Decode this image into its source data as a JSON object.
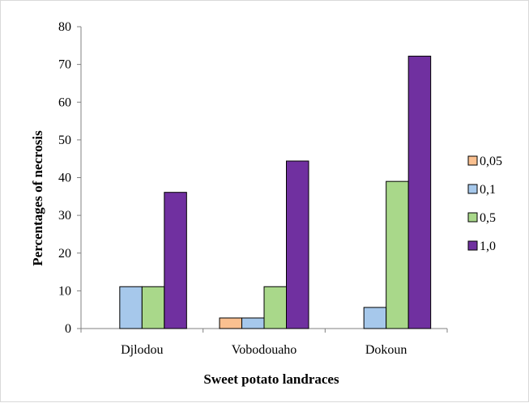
{
  "chart_data": {
    "type": "bar",
    "title": "",
    "xlabel": "Sweet potato landraces",
    "ylabel": "Percentages of necrosis",
    "categories": [
      "Djlodou",
      "Vobodouaho",
      "Dokoun"
    ],
    "ylim": [
      0,
      80
    ],
    "yticks": [
      "0",
      "10",
      "20",
      "30",
      "40",
      "50",
      "60",
      "70",
      "80"
    ],
    "grid": false,
    "legend_position": "right",
    "series": [
      {
        "name": "0,05",
        "color": "#f79646",
        "fill": "#fac090",
        "values": [
          0,
          2.8,
          0
        ]
      },
      {
        "name": "0,1",
        "color": "#4f81bd",
        "fill": "#a6c8eb",
        "values": [
          11.1,
          2.8,
          5.6
        ]
      },
      {
        "name": "0,5",
        "color": "#9bbb59",
        "fill": "#a9d88a",
        "values": [
          11.1,
          11.1,
          39.0
        ]
      },
      {
        "name": "1,0",
        "color": "#5f2d91",
        "fill": "#7030a0",
        "values": [
          36.1,
          44.4,
          72.2
        ]
      }
    ]
  }
}
